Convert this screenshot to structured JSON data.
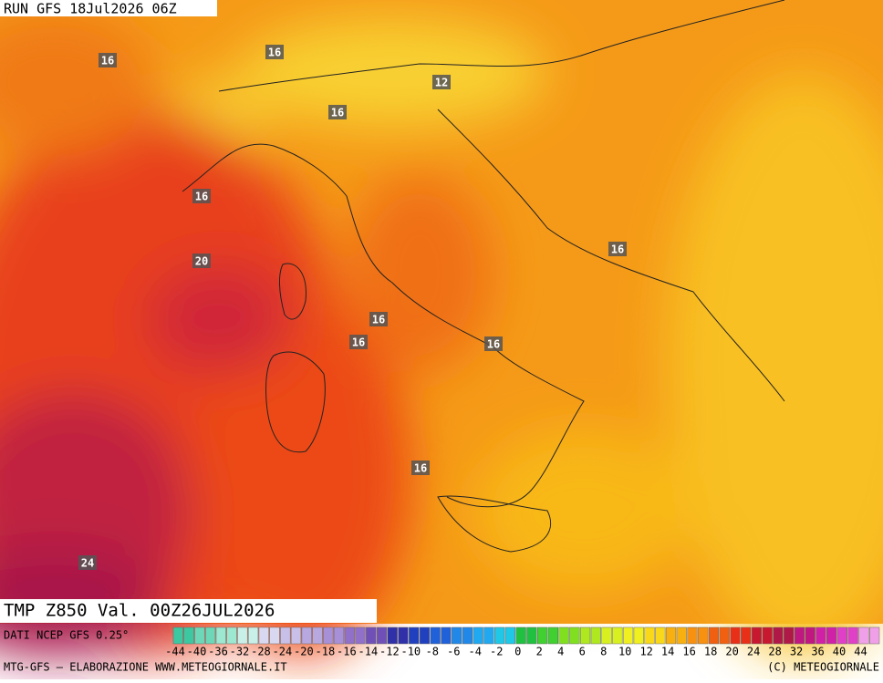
{
  "header": {
    "run": "RUN GFS 18Jul2026 06Z",
    "field": "TMP Z850 Val. 00Z26JUL2026",
    "source": "DATI NCEP GFS 0.25°"
  },
  "map_labels": [
    "16",
    "16",
    "12",
    "16",
    "16",
    "20",
    "16",
    "16",
    "16",
    "16",
    "16",
    "24"
  ],
  "scale": [
    {
      "label": "-44",
      "color": "#3cc8a0"
    },
    {
      "label": "-40",
      "color": "#6cd8b8"
    },
    {
      "label": "-36",
      "color": "#9ce8d0"
    },
    {
      "label": "-32",
      "color": "#c8f0e8"
    },
    {
      "label": "-28",
      "color": "#d8d8f0"
    },
    {
      "label": "-24",
      "color": "#c8c0e8"
    },
    {
      "label": "-20",
      "color": "#b8a8e0"
    },
    {
      "label": "-18",
      "color": "#a890d8"
    },
    {
      "label": "-16",
      "color": "#9070c8"
    },
    {
      "label": "-14",
      "color": "#7050b8"
    },
    {
      "label": "-12",
      "color": "#3030a8"
    },
    {
      "label": "-10",
      "color": "#2040c0"
    },
    {
      "label": "-8",
      "color": "#2060d8"
    },
    {
      "label": "-6",
      "color": "#2088e8"
    },
    {
      "label": "-4",
      "color": "#20a8f0"
    },
    {
      "label": "-2",
      "color": "#20c8e8"
    },
    {
      "label": "0",
      "color": "#20c040"
    },
    {
      "label": "2",
      "color": "#40d030"
    },
    {
      "label": "4",
      "color": "#80e020"
    },
    {
      "label": "6",
      "color": "#b0e820"
    },
    {
      "label": "8",
      "color": "#d8f020"
    },
    {
      "label": "10",
      "color": "#f0f020"
    },
    {
      "label": "12",
      "color": "#f8d818"
    },
    {
      "label": "14",
      "color": "#f8b010"
    },
    {
      "label": "16",
      "color": "#f89010"
    },
    {
      "label": "18",
      "color": "#f06010"
    },
    {
      "label": "20",
      "color": "#e83018"
    },
    {
      "label": "24",
      "color": "#c81830"
    },
    {
      "label": "28",
      "color": "#b01848"
    },
    {
      "label": "32",
      "color": "#c01880"
    },
    {
      "label": "36",
      "color": "#d020a8"
    },
    {
      "label": "40",
      "color": "#e040c8"
    },
    {
      "label": "44",
      "color": "#f0a0e8"
    }
  ],
  "footer": {
    "left": "MTG-GFS — ELABORAZIONE WWW.METEOGIORNALE.IT",
    "right": "(C) METEOGIORNALE"
  }
}
